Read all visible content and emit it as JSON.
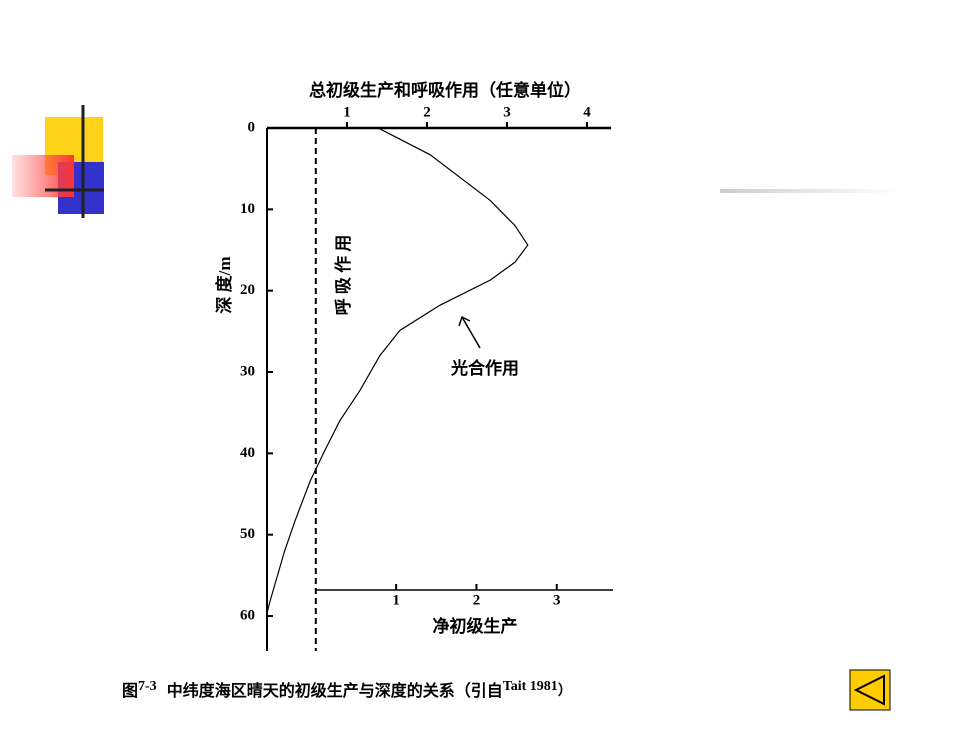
{
  "chart_data": {
    "type": "line",
    "title": "总初级生产和呼吸作用（任意单位）",
    "y_label": "深 度/m",
    "x": [
      1.39,
      2.04,
      2.79,
      3.1,
      3.26,
      3.1,
      2.79,
      2.16,
      1.66,
      1.41,
      1.16,
      0.91,
      0.72,
      0.54,
      0.35,
      0.22,
      0.04,
      0
    ],
    "y": [
      0,
      3.3,
      8.9,
      12,
      14.4,
      16.5,
      18.7,
      21.8,
      24.9,
      28,
      32.3,
      36,
      39.7,
      43.4,
      48.3,
      52,
      58.1,
      59.6
    ],
    "color": "#000000",
    "xlim": [
      0,
      4.3
    ],
    "xticks": [
      1,
      2,
      3,
      4
    ],
    "ylim": [
      0,
      64.3
    ],
    "yticks": [
      0,
      10,
      20,
      30,
      40,
      50,
      60
    ],
    "y_inverted": true,
    "respiration_x": 0.61,
    "respiration_label": "呼 吸 作 用",
    "annotation": "光合作用",
    "x2lim": [
      0,
      3.7
    ],
    "x2ticks": [
      1,
      2,
      3
    ],
    "x2_label": "净初级生产"
  },
  "caption": [
    "图",
    "7-3",
    "中纬度海区晴天的初级生产与深度的关系（引自",
    "Tait 1981",
    "）"
  ]
}
